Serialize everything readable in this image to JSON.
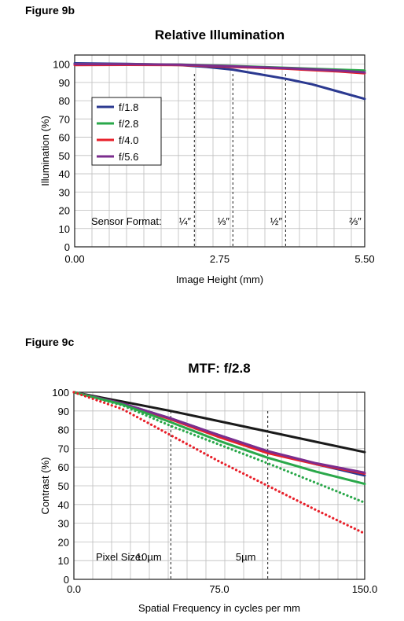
{
  "chart_data": [
    {
      "figure_label": "Figure 9b",
      "type": "line",
      "title": "Relative Illumination",
      "xlabel": "Image Height (mm)",
      "ylabel": "Illumination (%)",
      "xlim": [
        0,
        5.5
      ],
      "ylim": [
        0,
        105
      ],
      "x_ticks": [
        0,
        2.75,
        5.5
      ],
      "x_tick_labels": [
        "0.00",
        "2.75",
        "5.50"
      ],
      "y_ticks": [
        0,
        10,
        20,
        30,
        40,
        50,
        60,
        70,
        80,
        90,
        100
      ],
      "grid": true,
      "legend_position": "left",
      "series": [
        {
          "name": "f/1.8",
          "color": "#2b3990",
          "style": "solid",
          "points": [
            [
              0,
              100.5
            ],
            [
              1.0,
              100.2
            ],
            [
              2.0,
              99.5
            ],
            [
              2.5,
              98.5
            ],
            [
              3.0,
              97
            ],
            [
              3.5,
              94.5
            ],
            [
              4.0,
              92
            ],
            [
              4.5,
              89
            ],
            [
              5.0,
              85
            ],
            [
              5.5,
              81
            ]
          ]
        },
        {
          "name": "f/2.8",
          "color": "#2aa84a",
          "style": "solid",
          "points": [
            [
              0,
              100
            ],
            [
              1.0,
              100
            ],
            [
              2.0,
              99.8
            ],
            [
              3.0,
              99
            ],
            [
              4.0,
              98
            ],
            [
              5.0,
              97
            ],
            [
              5.5,
              96.5
            ]
          ]
        },
        {
          "name": "f/4.0",
          "color": "#e8202a",
          "style": "solid",
          "points": [
            [
              0,
              99.5
            ],
            [
              1.0,
              99.6
            ],
            [
              2.0,
              99.5
            ],
            [
              3.0,
              98.5
            ],
            [
              4.0,
              97.5
            ],
            [
              5.0,
              96
            ],
            [
              5.5,
              95
            ]
          ]
        },
        {
          "name": "f/5.6",
          "color": "#7b2d8e",
          "style": "solid",
          "points": [
            [
              0,
              100
            ],
            [
              1.0,
              100
            ],
            [
              2.0,
              99.7
            ],
            [
              3.0,
              98.8
            ],
            [
              4.0,
              97.8
            ],
            [
              5.0,
              96.5
            ],
            [
              5.5,
              95.5
            ]
          ]
        }
      ],
      "reference_lines": [
        {
          "x": 2.27,
          "label": "¼″"
        },
        {
          "x": 3.0,
          "label": "⅓″"
        },
        {
          "x": 4.0,
          "label": "½″"
        },
        {
          "x": 5.5,
          "label": "⅔″"
        }
      ],
      "annotation": "Sensor Format:"
    },
    {
      "figure_label": "Figure 9c",
      "type": "line",
      "title": "MTF: f/2.8",
      "xlabel": "Spatial Frequency in cycles per mm",
      "ylabel": "Contrast (%)",
      "xlim": [
        0,
        150
      ],
      "ylim": [
        0,
        100
      ],
      "x_ticks": [
        0,
        75,
        150
      ],
      "x_tick_labels": [
        "0.0",
        "75.0",
        "150.0"
      ],
      "y_ticks": [
        0,
        10,
        20,
        30,
        40,
        50,
        60,
        70,
        80,
        90,
        100
      ],
      "grid": true,
      "series": [
        {
          "color": "#1a1a1a",
          "style": "solid",
          "points": [
            [
              0,
              100
            ],
            [
              25,
              95
            ],
            [
              50,
              90
            ],
            [
              75,
              84.5
            ],
            [
              100,
              79
            ],
            [
              125,
              73.5
            ],
            [
              150,
              68
            ]
          ]
        },
        {
          "color": "#2b3990",
          "style": "solid",
          "points": [
            [
              0,
              100
            ],
            [
              25,
              94
            ],
            [
              50,
              86
            ],
            [
              75,
              77
            ],
            [
              100,
              68.5
            ],
            [
              125,
              61.5
            ],
            [
              150,
              55.5
            ]
          ]
        },
        {
          "color": "#e8202a",
          "style": "solid",
          "points": [
            [
              0,
              100
            ],
            [
              25,
              94
            ],
            [
              50,
              85.5
            ],
            [
              75,
              76
            ],
            [
              100,
              67.5
            ],
            [
              125,
              61.5
            ],
            [
              150,
              56.5
            ]
          ]
        },
        {
          "color": "#7b2d8e",
          "style": "solid",
          "points": [
            [
              0,
              100
            ],
            [
              25,
              94
            ],
            [
              50,
              86
            ],
            [
              75,
              77
            ],
            [
              100,
              68.5
            ],
            [
              125,
              62
            ],
            [
              150,
              57
            ]
          ]
        },
        {
          "color": "#2aa84a",
          "style": "solid",
          "points": [
            [
              0,
              100
            ],
            [
              25,
              93.5
            ],
            [
              50,
              84
            ],
            [
              75,
              74
            ],
            [
              100,
              65
            ],
            [
              125,
              57.5
            ],
            [
              150,
              51
            ]
          ]
        },
        {
          "color": "#2aa84a",
          "style": "dotted",
          "points": [
            [
              0,
              100
            ],
            [
              25,
              93
            ],
            [
              50,
              82
            ],
            [
              75,
              72
            ],
            [
              100,
              62
            ],
            [
              125,
              51.5
            ],
            [
              150,
              41
            ]
          ]
        },
        {
          "color": "#e8202a",
          "style": "dotted",
          "points": [
            [
              0,
              100
            ],
            [
              25,
              91
            ],
            [
              50,
              77
            ],
            [
              75,
              63
            ],
            [
              100,
              50
            ],
            [
              125,
              37
            ],
            [
              150,
              24.5
            ]
          ]
        }
      ],
      "reference_lines": [
        {
          "x": 50,
          "label": "10µm"
        },
        {
          "x": 100,
          "label": "5µm"
        }
      ],
      "annotation": "Pixel Size:"
    }
  ]
}
